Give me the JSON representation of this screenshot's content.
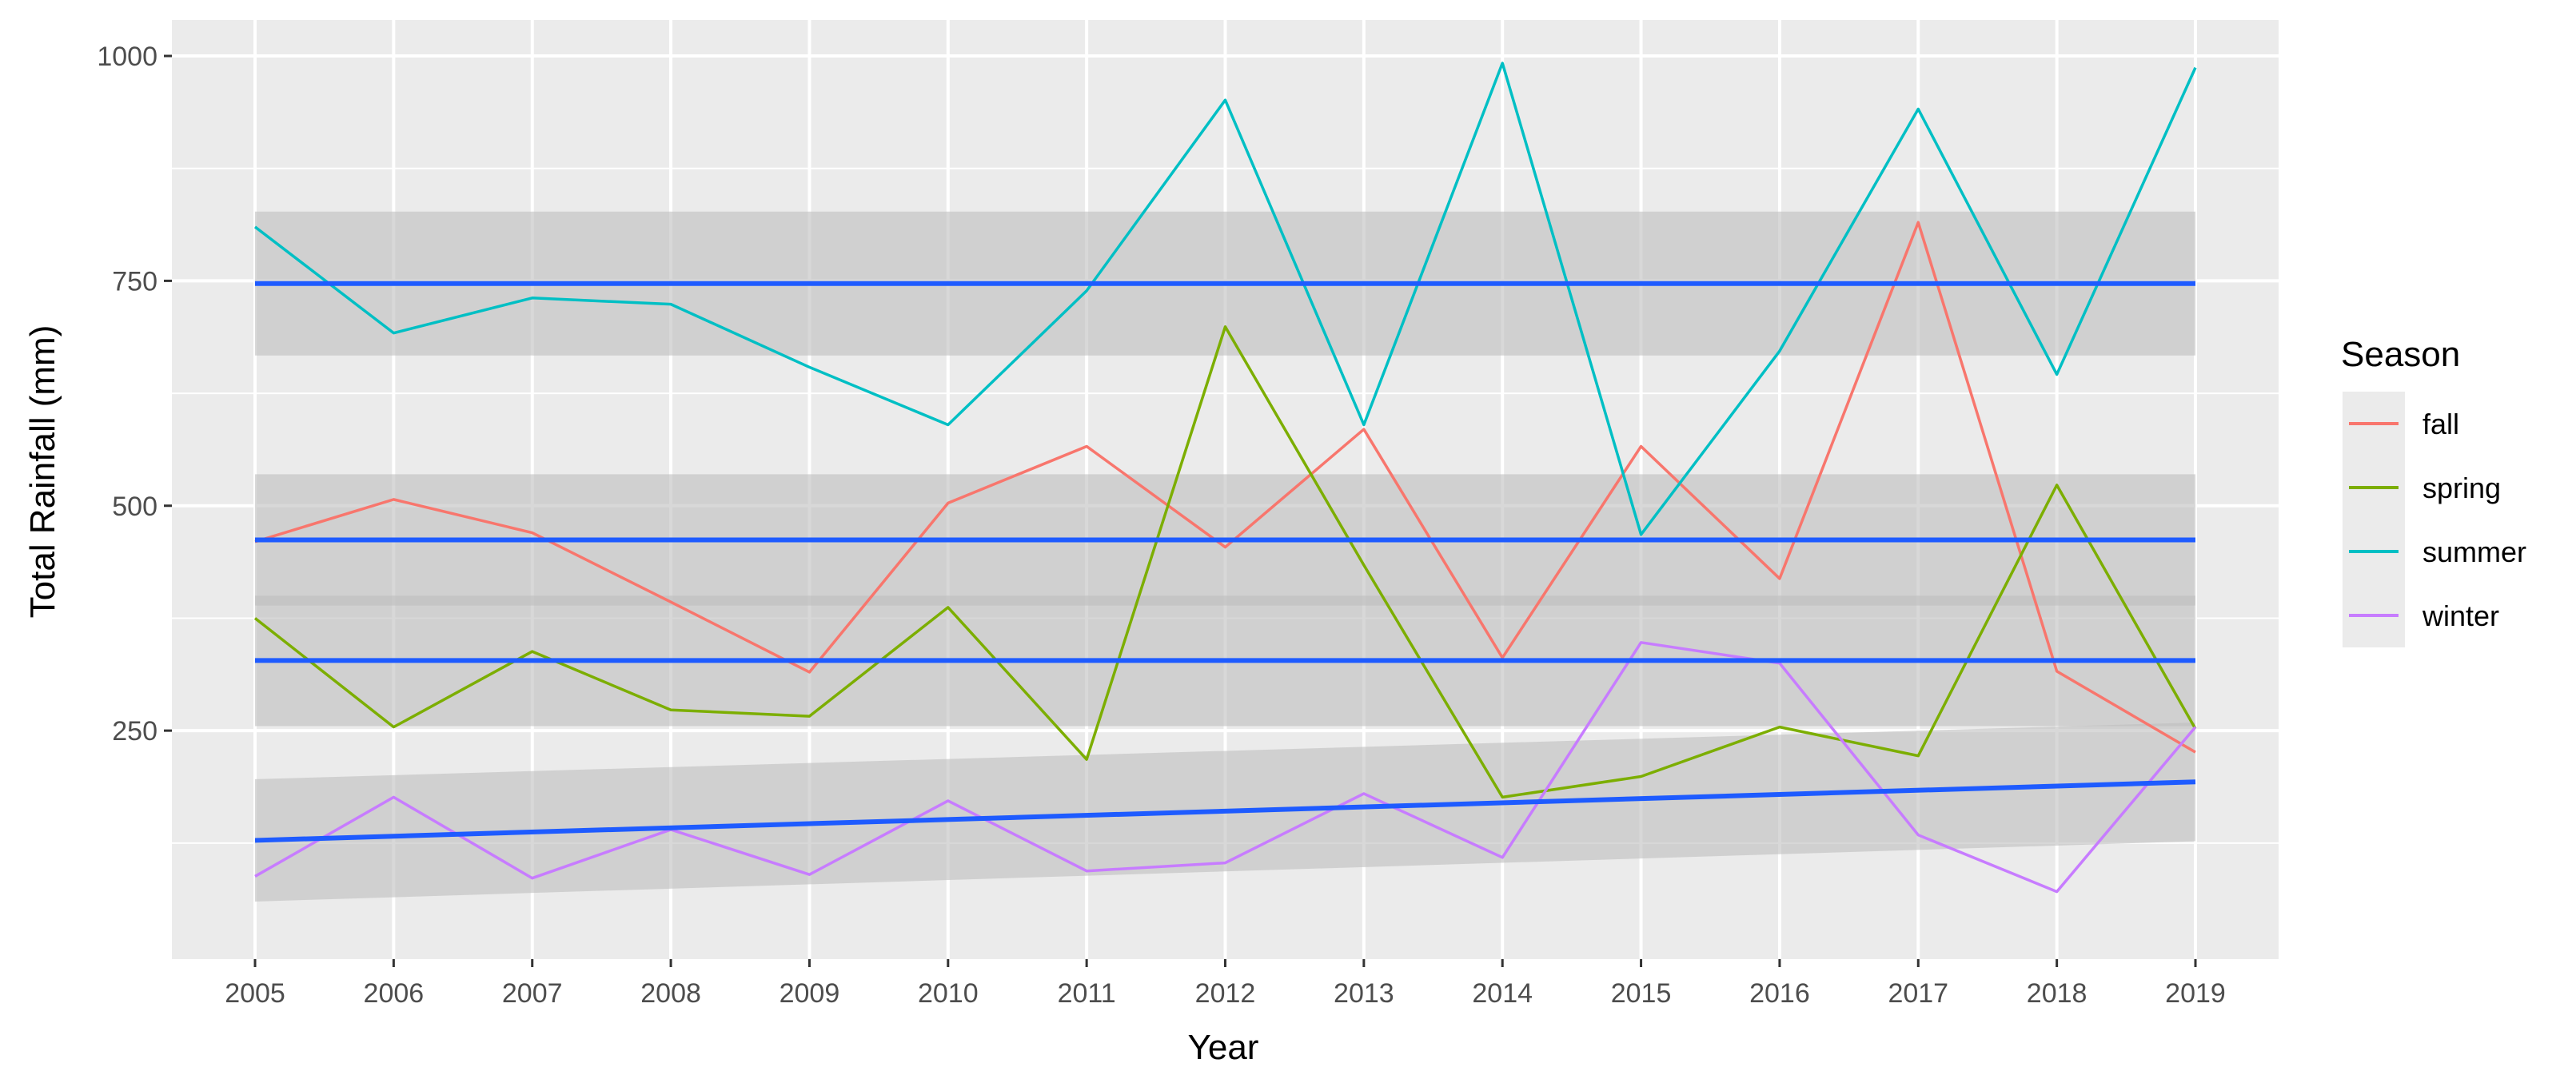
{
  "chart_data": {
    "type": "line",
    "title": "",
    "xlabel": "Year",
    "ylabel": "Total Rainfall (mm)",
    "x": [
      2005,
      2006,
      2007,
      2008,
      2009,
      2010,
      2011,
      2012,
      2013,
      2014,
      2015,
      2016,
      2017,
      2018,
      2019
    ],
    "x_tick_labels": [
      "2005",
      "2006",
      "2007",
      "2008",
      "2009",
      "2010",
      "2011",
      "2012",
      "2013",
      "2014",
      "2015",
      "2016",
      "2017",
      "2018",
      "2019"
    ],
    "y_ticks": [
      250,
      500,
      750,
      1000
    ],
    "y_tick_labels": [
      "250",
      "500",
      "750",
      "1000"
    ],
    "xlim": [
      2004.4,
      2019.6
    ],
    "ylim": [
      -4,
      1040
    ],
    "grid": true,
    "legend": {
      "title": "Season",
      "position": "right"
    },
    "series": [
      {
        "name": "fall",
        "color": "#F8766D",
        "values": [
          460,
          507,
          470,
          393,
          315,
          503,
          566,
          454,
          585,
          331,
          566,
          419,
          815,
          316,
          226
        ]
      },
      {
        "name": "spring",
        "color": "#7CAE00",
        "values": [
          375,
          254,
          338,
          273,
          266,
          387,
          218,
          699,
          434,
          176,
          199,
          254,
          222,
          523,
          252
        ]
      },
      {
        "name": "summer",
        "color": "#00BFC4",
        "values": [
          810,
          692,
          731,
          724,
          654,
          590,
          739,
          951,
          590,
          992,
          468,
          672,
          941,
          646,
          987
        ]
      },
      {
        "name": "winter",
        "color": "#C77CFF",
        "values": [
          88,
          176,
          86,
          140,
          90,
          172,
          94,
          103,
          180,
          109,
          348,
          325,
          134,
          71,
          254
        ]
      }
    ],
    "trend_lines": [
      {
        "series": "summer",
        "color": "#1E5BFF",
        "start": 747,
        "end": 747,
        "ci_low": [
          667,
          667
        ],
        "ci_high": [
          827,
          827
        ]
      },
      {
        "series": "fall",
        "color": "#1E5BFF",
        "start": 462,
        "end": 462,
        "ci_low": [
          389,
          389
        ],
        "ci_high": [
          535,
          535
        ]
      },
      {
        "series": "spring",
        "color": "#1E5BFF",
        "start": 328,
        "end": 328,
        "ci_low": [
          255,
          255
        ],
        "ci_high": [
          400,
          400
        ]
      },
      {
        "series": "winter",
        "color": "#1E5BFF",
        "start": 128,
        "end": 193,
        "ci_low": [
          60,
          127
        ],
        "ci_high": [
          196,
          259
        ]
      }
    ],
    "colors": {
      "panel_background": "#EBEBEB",
      "grid_major": "#FFFFFF",
      "ci_fill": "#BEBEBE"
    }
  }
}
